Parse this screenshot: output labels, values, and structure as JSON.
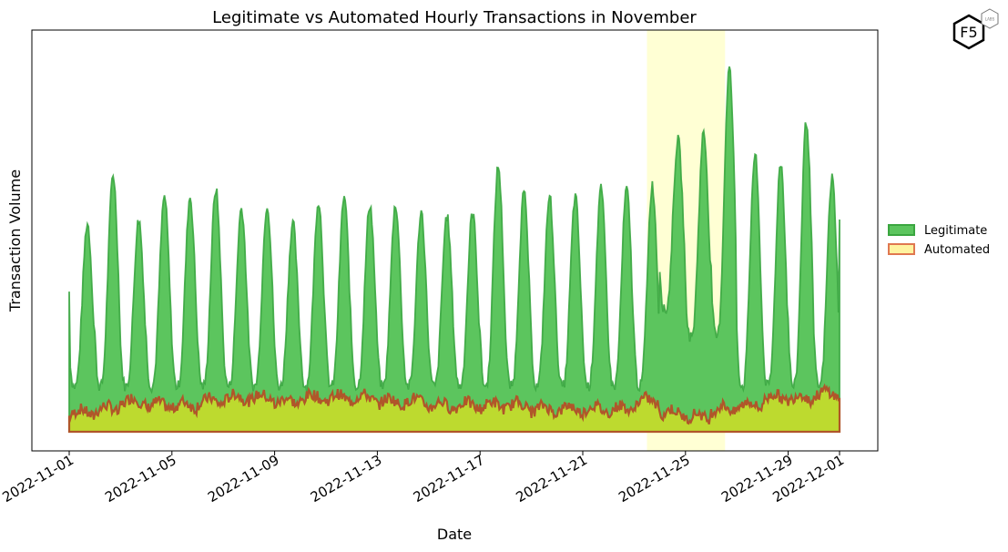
{
  "logo": {
    "text": "F5",
    "badge": "LABS"
  },
  "chart_data": {
    "type": "area",
    "title": "Legitimate vs Automated Hourly Transactions in November",
    "xlabel": "Date",
    "ylabel": "Transaction Volume",
    "x_range": [
      "2022-11-01",
      "2022-12-01"
    ],
    "x_ticks": [
      "2022-11-01",
      "2022-11-05",
      "2022-11-09",
      "2022-11-13",
      "2022-11-17",
      "2022-11-21",
      "2022-11-25",
      "2022-11-29",
      "2022-12-01"
    ],
    "y_ticks_visible": false,
    "y_range_relative": [
      0,
      1.06
    ],
    "grid": false,
    "legend_position": "right",
    "highlight": {
      "start": "2022-11-23T12:00",
      "end": "2022-11-26T13:00",
      "color": "#ffffcc"
    },
    "series": [
      {
        "name": "Legitimate",
        "fill": "#5cc55e",
        "stroke": "#3aa640",
        "daily_peaks": [
          0.55,
          0.68,
          0.56,
          0.62,
          0.62,
          0.64,
          0.59,
          0.6,
          0.55,
          0.61,
          0.62,
          0.6,
          0.6,
          0.58,
          0.57,
          0.58,
          0.7,
          0.63,
          0.62,
          0.62,
          0.64,
          0.64,
          0.65,
          0.77,
          0.79,
          0.96,
          0.73,
          0.71,
          0.82,
          0.67,
          0.58
        ],
        "daily_troughs": [
          0.12,
          0.12,
          0.12,
          0.12,
          0.12,
          0.12,
          0.12,
          0.12,
          0.12,
          0.12,
          0.12,
          0.12,
          0.12,
          0.12,
          0.12,
          0.12,
          0.12,
          0.12,
          0.12,
          0.12,
          0.12,
          0.12,
          0.12,
          0.32,
          0.25,
          0.25,
          0.12,
          0.12,
          0.12,
          0.12,
          0.12
        ],
        "start_value": 0.37,
        "end_value": 0.56
      },
      {
        "name": "Automated",
        "fill": "#c8dc2a",
        "stroke": "#b0562a",
        "baseline_relative": 0.07,
        "daily_levels": [
          0.05,
          0.06,
          0.08,
          0.07,
          0.07,
          0.08,
          0.09,
          0.09,
          0.08,
          0.09,
          0.09,
          0.09,
          0.08,
          0.08,
          0.07,
          0.07,
          0.07,
          0.07,
          0.06,
          0.06,
          0.06,
          0.06,
          0.08,
          0.05,
          0.04,
          0.06,
          0.07,
          0.09,
          0.09,
          0.1,
          0.1
        ]
      }
    ]
  }
}
